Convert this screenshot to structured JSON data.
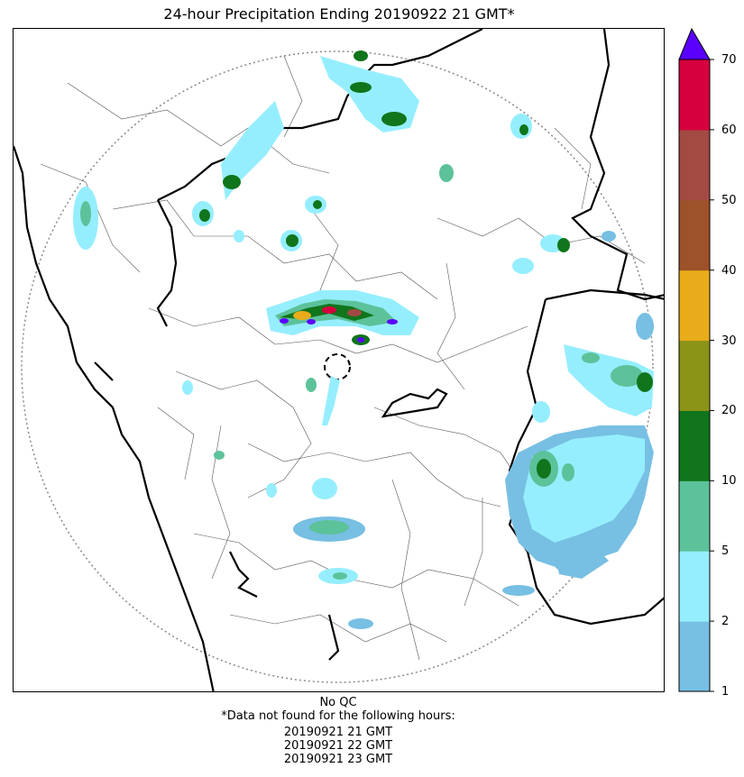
{
  "title": "24-hour Precipitation Ending 20190922 21 GMT*",
  "colorbar": {
    "ticks": [
      "1",
      "2",
      "5",
      "10",
      "20",
      "30",
      "40",
      "50",
      "60",
      "70"
    ],
    "bins": [
      {
        "from": "1",
        "to": "2",
        "color": "#77bfe3"
      },
      {
        "from": "2",
        "to": "5",
        "color": "#95eefe"
      },
      {
        "from": "5",
        "to": "10",
        "color": "#5cc29a"
      },
      {
        "from": "10",
        "to": "20",
        "color": "#10751b"
      },
      {
        "from": "20",
        "to": "30",
        "color": "#8b9417"
      },
      {
        "from": "30",
        "to": "40",
        "color": "#e8ac1b"
      },
      {
        "from": "40",
        "to": "50",
        "color": "#9e522a"
      },
      {
        "from": "50",
        "to": "60",
        "color": "#a34a42"
      },
      {
        "from": "60",
        "to": "70",
        "color": "#d6003f"
      }
    ],
    "over_color": "#5a00ff"
  },
  "footnote": {
    "qc": "No QC",
    "missing_header": "*Data not found for the following hours:",
    "missing_hours": [
      "20190921 21 GMT",
      "20190921 22 GMT",
      "20190921 23 GMT"
    ]
  }
}
